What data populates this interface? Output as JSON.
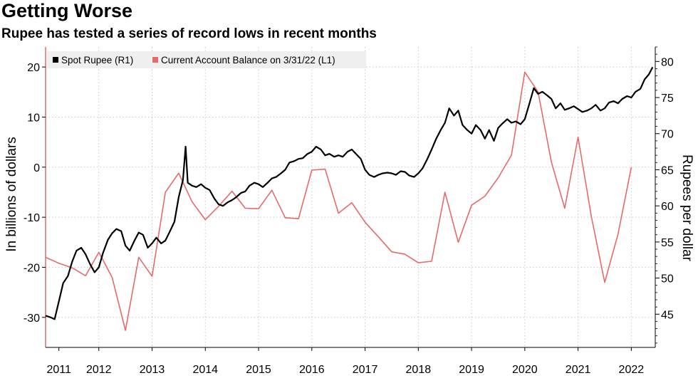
{
  "title": "Getting Worse",
  "subtitle": "Rupee has tested a series of record lows in recent months",
  "chart_data": {
    "type": "line",
    "left_axis": {
      "label": "In billions of dollars",
      "range": [
        -36,
        24
      ],
      "ticks": [
        -30,
        -20,
        -10,
        0,
        10,
        20
      ]
    },
    "right_axis": {
      "label": "Rupees per dollar",
      "range": [
        40.4,
        82.0
      ],
      "ticks": [
        45,
        50,
        55,
        60,
        65,
        70,
        75,
        80
      ]
    },
    "x_axis": {
      "range": [
        2011.0,
        2022.45
      ],
      "tick_labels": [
        "2011",
        "2012",
        "2013",
        "2014",
        "2015",
        "2016",
        "2017",
        "2018",
        "2019",
        "2020",
        "2021",
        "2022"
      ],
      "tick_positions": [
        2011.25,
        2012.0,
        2013.0,
        2014.0,
        2015.0,
        2016.0,
        2017.0,
        2018.0,
        2019.0,
        2020.0,
        2021.0,
        2022.0
      ]
    },
    "grid": true,
    "legend_position": "top-left",
    "series": [
      {
        "name": "Spot Rupee (R1)",
        "axis": "right",
        "color": "#000000",
        "x": [
          2011.0,
          2011.08,
          2011.17,
          2011.25,
          2011.33,
          2011.42,
          2011.5,
          2011.58,
          2011.67,
          2011.75,
          2011.83,
          2011.92,
          2012.0,
          2012.08,
          2012.17,
          2012.25,
          2012.33,
          2012.42,
          2012.5,
          2012.58,
          2012.67,
          2012.75,
          2012.83,
          2012.92,
          2013.0,
          2013.08,
          2013.17,
          2013.25,
          2013.33,
          2013.42,
          2013.5,
          2013.58,
          2013.63,
          2013.67,
          2013.75,
          2013.83,
          2013.92,
          2014.0,
          2014.08,
          2014.17,
          2014.25,
          2014.33,
          2014.42,
          2014.5,
          2014.58,
          2014.67,
          2014.75,
          2014.83,
          2014.92,
          2015.0,
          2015.08,
          2015.17,
          2015.25,
          2015.33,
          2015.42,
          2015.5,
          2015.58,
          2015.67,
          2015.75,
          2015.83,
          2015.92,
          2016.0,
          2016.08,
          2016.17,
          2016.25,
          2016.33,
          2016.42,
          2016.5,
          2016.58,
          2016.67,
          2016.75,
          2016.83,
          2016.92,
          2017.0,
          2017.08,
          2017.17,
          2017.25,
          2017.33,
          2017.42,
          2017.5,
          2017.58,
          2017.67,
          2017.75,
          2017.83,
          2017.92,
          2018.0,
          2018.08,
          2018.17,
          2018.25,
          2018.33,
          2018.42,
          2018.5,
          2018.58,
          2018.67,
          2018.75,
          2018.83,
          2018.92,
          2019.0,
          2019.08,
          2019.17,
          2019.25,
          2019.33,
          2019.42,
          2019.5,
          2019.58,
          2019.67,
          2019.75,
          2019.83,
          2019.92,
          2020.0,
          2020.08,
          2020.17,
          2020.25,
          2020.33,
          2020.42,
          2020.5,
          2020.58,
          2020.67,
          2020.75,
          2020.83,
          2020.92,
          2021.0,
          2021.08,
          2021.17,
          2021.25,
          2021.33,
          2021.42,
          2021.5,
          2021.58,
          2021.67,
          2021.75,
          2021.83,
          2021.92,
          2022.0,
          2022.08,
          2022.17,
          2022.25,
          2022.33,
          2022.4
        ],
        "values": [
          44.8,
          44.6,
          44.3,
          46.8,
          49.3,
          50.3,
          52.3,
          53.8,
          54.2,
          53.3,
          52.0,
          50.8,
          51.5,
          53.5,
          55.3,
          56.2,
          56.8,
          56.5,
          54.5,
          53.8,
          55.2,
          56.3,
          56.0,
          54.2,
          54.8,
          55.6,
          54.8,
          55.2,
          56.4,
          57.8,
          61.2,
          63.6,
          68.2,
          63.2,
          62.8,
          62.6,
          63.0,
          62.5,
          62.2,
          61.0,
          60.2,
          60.0,
          60.5,
          60.8,
          61.2,
          61.8,
          62.0,
          62.8,
          63.2,
          63.0,
          62.6,
          63.2,
          63.8,
          64.0,
          64.5,
          65.0,
          66.0,
          66.2,
          66.5,
          66.6,
          67.2,
          67.5,
          68.2,
          67.8,
          67.0,
          67.2,
          66.8,
          67.0,
          66.8,
          67.5,
          67.8,
          67.2,
          66.5,
          65.0,
          64.3,
          64.0,
          64.3,
          64.5,
          64.6,
          64.5,
          64.3,
          64.8,
          64.7,
          64.2,
          64.0,
          64.5,
          65.2,
          66.5,
          67.8,
          69.2,
          70.5,
          71.5,
          73.5,
          72.5,
          73.2,
          71.2,
          70.5,
          70.0,
          71.2,
          70.5,
          69.3,
          70.5,
          69.0,
          70.8,
          71.4,
          72.0,
          71.5,
          71.7,
          71.3,
          72.0,
          74.0,
          76.3,
          75.5,
          75.8,
          75.3,
          74.8,
          73.5,
          74.2,
          73.3,
          73.5,
          73.8,
          73.4,
          73.0,
          73.2,
          73.5,
          74.0,
          73.2,
          73.5,
          74.3,
          74.5,
          74.2,
          74.8,
          75.2,
          75.0,
          75.8,
          76.2,
          77.5,
          78.2,
          79.2
        ]
      },
      {
        "name": "Current Account Balance on 3/31/22 (L1)",
        "axis": "left",
        "color": "#e66a6a",
        "x": [
          2011.0,
          2011.25,
          2011.5,
          2011.75,
          2012.0,
          2012.25,
          2012.5,
          2012.75,
          2013.0,
          2013.25,
          2013.5,
          2013.75,
          2014.0,
          2014.25,
          2014.5,
          2014.75,
          2015.0,
          2015.25,
          2015.5,
          2015.75,
          2016.0,
          2016.25,
          2016.5,
          2016.75,
          2017.0,
          2017.25,
          2017.5,
          2017.75,
          2018.0,
          2018.25,
          2018.5,
          2018.75,
          2019.0,
          2019.25,
          2019.5,
          2019.75,
          2020.0,
          2020.25,
          2020.5,
          2020.75,
          2021.0,
          2021.25,
          2021.5,
          2021.75,
          2022.0
        ],
        "values": [
          -18.0,
          -19.2,
          -20.1,
          -21.7,
          -17.0,
          -22.0,
          -32.6,
          -18.0,
          -21.8,
          -5.0,
          -1.2,
          -6.9,
          -10.5,
          -7.8,
          -4.8,
          -8.2,
          -8.3,
          -4.6,
          -10.1,
          -10.3,
          -0.6,
          -0.4,
          -9.2,
          -7.1,
          -11.0,
          -13.9,
          -16.9,
          -17.4,
          -19.1,
          -18.8,
          -5.0,
          -15.0,
          -7.6,
          -5.8,
          -2.1,
          2.4,
          19.0,
          15.0,
          1.0,
          -8.2,
          6.0,
          -9.9,
          -23.0,
          -13.4,
          0.0
        ]
      }
    ]
  }
}
